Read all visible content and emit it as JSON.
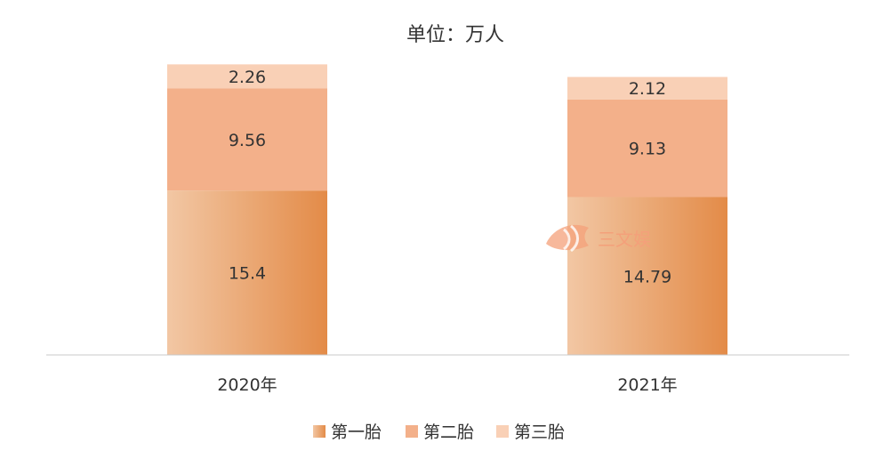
{
  "chart_data": {
    "type": "bar",
    "stacked": true,
    "title": "单位：万人",
    "categories": [
      "2020年",
      "2021年"
    ],
    "series": [
      {
        "name": "第一胎",
        "values": [
          15.4,
          14.79
        ],
        "color": "#e38b48",
        "gradient_from": "#f2c7a4"
      },
      {
        "name": "第二胎",
        "values": [
          9.56,
          9.13
        ],
        "color": "#f3b08a"
      },
      {
        "name": "第三胎",
        "values": [
          2.26,
          2.12
        ],
        "color": "#f9d0b6"
      }
    ],
    "value_labels": [
      [
        "15.4",
        "14.79"
      ],
      [
        "9.56",
        "9.13"
      ],
      [
        "2.26",
        "2.12"
      ]
    ],
    "legend_position": "bottom",
    "grid": false
  },
  "watermark": {
    "text": "三文娱",
    "color": "#f4a07a"
  }
}
